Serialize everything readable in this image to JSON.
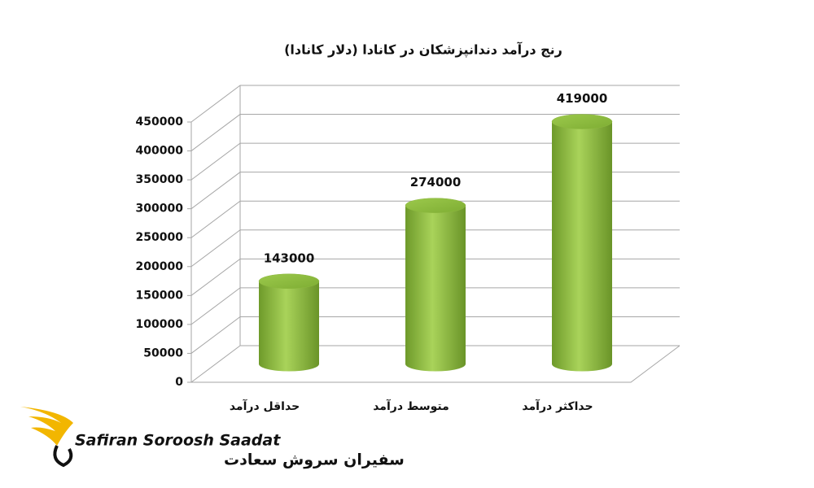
{
  "chart_data": {
    "type": "bar",
    "title": "رنج درآمد دندانپزشکان در کانادا (دلار کانادا)",
    "categories": [
      "حداقل درآمد",
      "متوسط درآمد",
      "حداکثر درآمد"
    ],
    "values": [
      143000,
      274000,
      419000
    ],
    "color": "#8db83f",
    "ylim": [
      0,
      450000
    ],
    "yticks": [
      0,
      50000,
      100000,
      150000,
      200000,
      250000,
      300000,
      350000,
      400000,
      450000
    ],
    "grid": true
  },
  "logo": {
    "name_en": "Safiran Soroosh Saadat",
    "name_fa": "سفیران سروش سعادت"
  }
}
